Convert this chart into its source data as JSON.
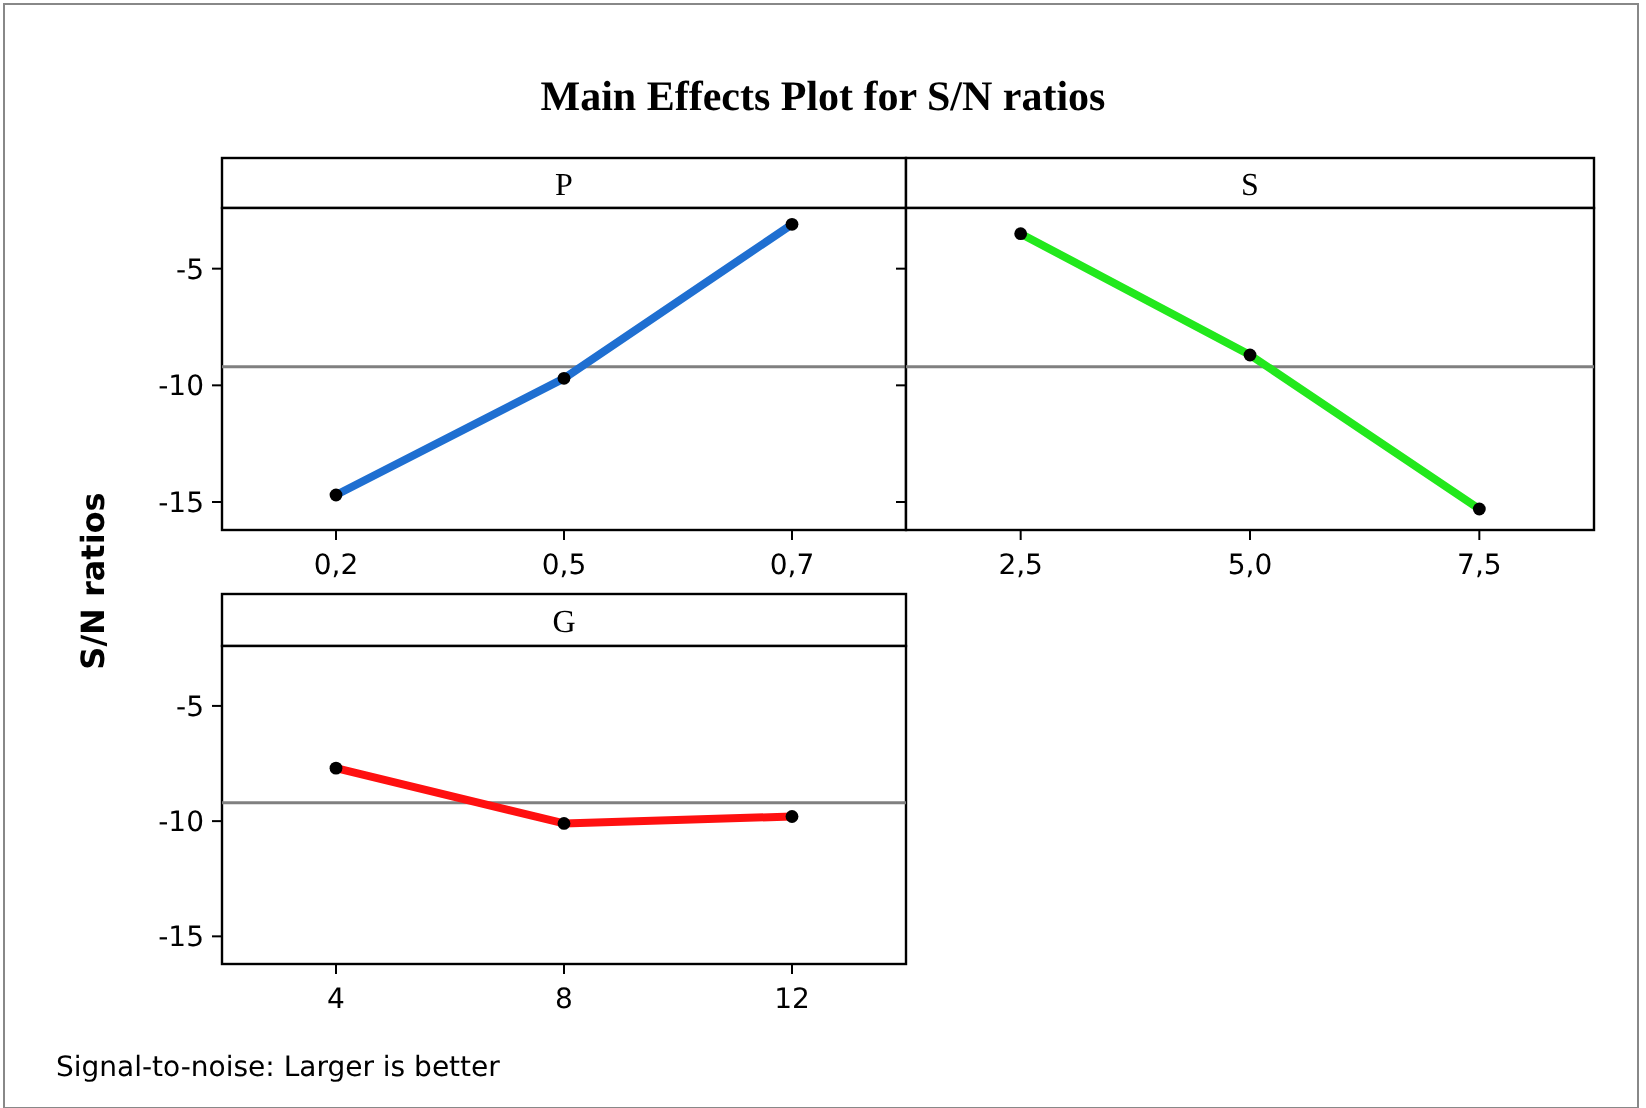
{
  "chart_data": [
    {
      "type": "line",
      "title": "Main Effects Plot for S/N ratios",
      "xlabel": "P",
      "ylabel": "S/N ratios",
      "categories": [
        "0,2",
        "0,5",
        "0,7"
      ],
      "series": [
        {
          "color": "#1f6fd1",
          "values": [
            -14.7,
            -9.7,
            -3.1
          ]
        }
      ],
      "ylim": [
        -16.2,
        -2.4
      ],
      "yticks": [
        -15,
        -10,
        -5
      ],
      "ref_lines": [
        {
          "axis": "y",
          "value": -9.2,
          "color": "#808080"
        }
      ],
      "marker": "circle",
      "grid": false
    },
    {
      "type": "line",
      "xlabel": "S",
      "categories": [
        "2,5",
        "5,0",
        "7,5"
      ],
      "series": [
        {
          "color": "#22e81c",
          "values": [
            -3.5,
            -8.7,
            -15.3
          ]
        }
      ],
      "ylim": [
        -16.2,
        -2.4
      ],
      "yticks": [
        -15,
        -10,
        -5
      ],
      "tick_labels": "x",
      "ref_lines": [
        {
          "axis": "y",
          "value": -9.2,
          "color": "#808080"
        }
      ],
      "marker": "circle",
      "grid": false
    },
    {
      "type": "line",
      "xlabel": "G",
      "categories": [
        "4",
        "8",
        "12"
      ],
      "series": [
        {
          "color": "#ff1010",
          "values": [
            -7.7,
            -10.1,
            -9.8
          ]
        }
      ],
      "ylim": [
        -16.2,
        -2.4
      ],
      "yticks": [
        -15,
        -10,
        -5
      ],
      "ref_lines": [
        {
          "axis": "y",
          "value": -9.2,
          "color": "#808080"
        }
      ],
      "marker": "circle",
      "grid": false,
      "annotations": [
        "Signal-to-noise: Larger is better"
      ]
    }
  ]
}
